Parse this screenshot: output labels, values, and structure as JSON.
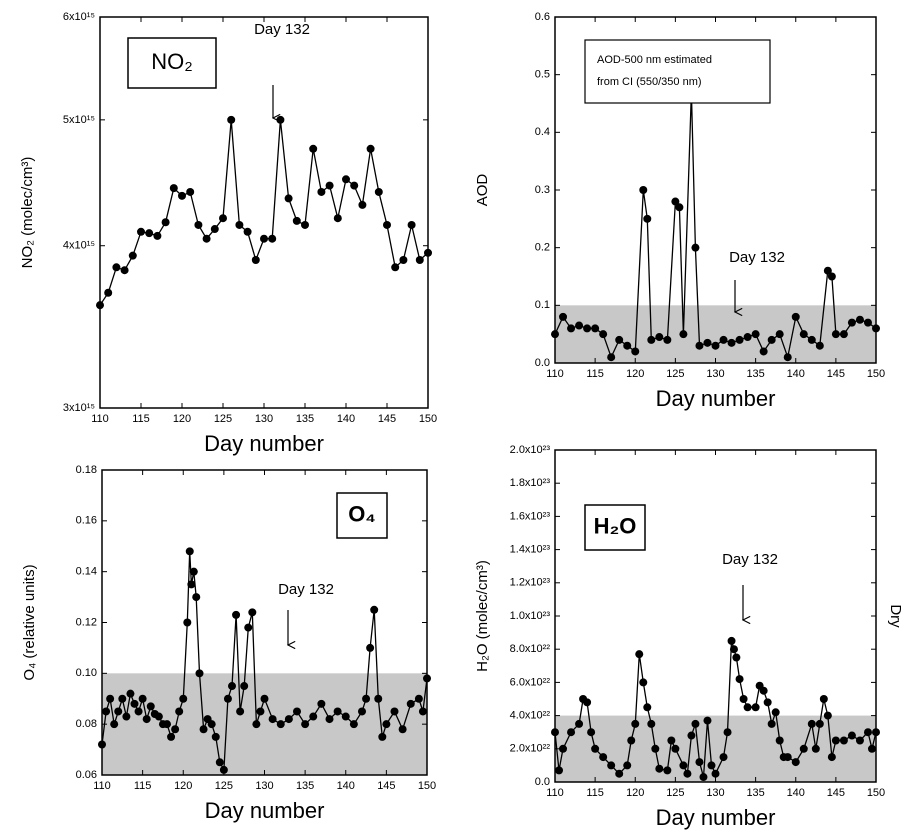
{
  "chart_data": [
    {
      "type": "line",
      "ylabel": "NO₂ (molec/cm³)",
      "xlabel": "Day number",
      "label_box": "NO₂",
      "annotation": "Day 132",
      "color": "#000000",
      "ylog": true,
      "xlim": [
        110,
        150
      ],
      "xticks": [
        110,
        115,
        120,
        125,
        130,
        135,
        140,
        145,
        150
      ],
      "ylim": [
        3000000000000000.0,
        6000000000000000.0
      ],
      "yticks": [
        {
          "value": 3000000000000000.0,
          "label": "3x10¹⁵"
        },
        {
          "value": 4000000000000000.0,
          "label": "4x10¹⁵"
        },
        {
          "value": 5000000000000000.0,
          "label": "5x10¹⁵"
        },
        {
          "value": 6000000000000000.0,
          "label": "6x10¹⁵"
        }
      ],
      "x": [
        110,
        111,
        112,
        113,
        114,
        115,
        116,
        117,
        118,
        119,
        120,
        121,
        122,
        123,
        124,
        125,
        126,
        127,
        128,
        129,
        130,
        131,
        132,
        133,
        134,
        135,
        136,
        137,
        138,
        139,
        140,
        141,
        142,
        143,
        144,
        145,
        146,
        147,
        148,
        149,
        150
      ],
      "values": [
        3600000000000000.0,
        3680000000000000.0,
        3850000000000000.0,
        3830000000000000.0,
        3930000000000000.0,
        4100000000000000.0,
        4090000000000000.0,
        4070000000000000.0,
        4170000000000000.0,
        4430000000000000.0,
        4370000000000000.0,
        4400000000000000.0,
        4150000000000000.0,
        4050000000000000.0,
        4120000000000000.0,
        4200000000000000.0,
        5000000000000000.0,
        4150000000000000.0,
        4100000000000000.0,
        3900000000000000.0,
        4050000000000000.0,
        4050000000000000.0,
        5000000000000000.0,
        4350000000000000.0,
        4180000000000000.0,
        4150000000000000.0,
        4750000000000000.0,
        4400000000000000.0,
        4450000000000000.0,
        4200000000000000.0,
        4500000000000000.0,
        4450000000000000.0,
        4300000000000000.0,
        4750000000000000.0,
        4400000000000000.0,
        4150000000000000.0,
        3850000000000000.0,
        3900000000000000.0,
        4150000000000000.0,
        3900000000000000.0,
        3950000000000000.0
      ]
    },
    {
      "type": "line",
      "ylabel": "AOD",
      "xlabel": "Day number",
      "note": [
        "AOD-500 nm estimated",
        "from CI (550/350 nm)"
      ],
      "annotation": "Day 132",
      "color": "#000000",
      "shade": [
        0,
        0.1
      ],
      "xlim": [
        110,
        150
      ],
      "xticks": [
        110,
        115,
        120,
        125,
        130,
        135,
        140,
        145,
        150
      ],
      "ylim": [
        0,
        0.6
      ],
      "yticks": [
        {
          "value": 0,
          "label": "0.0"
        },
        0.1,
        0.2,
        0.3,
        0.4,
        0.5,
        0.6
      ],
      "x": [
        110,
        111,
        112,
        113,
        114,
        115,
        116,
        117,
        118,
        119,
        120,
        121,
        121.5,
        122,
        123,
        124,
        125,
        125.5,
        126,
        127,
        127.5,
        128,
        129,
        130,
        131,
        132,
        133,
        134,
        135,
        136,
        137,
        138,
        139,
        140,
        141,
        142,
        143,
        144,
        144.5,
        145,
        146,
        147,
        148,
        149,
        150
      ],
      "values": [
        0.05,
        0.08,
        0.06,
        0.065,
        0.06,
        0.06,
        0.05,
        0.01,
        0.04,
        0.03,
        0.02,
        0.3,
        0.25,
        0.04,
        0.045,
        0.04,
        0.28,
        0.27,
        0.05,
        0.47,
        0.2,
        0.03,
        0.035,
        0.03,
        0.04,
        0.035,
        0.04,
        0.045,
        0.05,
        0.02,
        0.04,
        0.05,
        0.01,
        0.08,
        0.05,
        0.04,
        0.03,
        0.16,
        0.15,
        0.05,
        0.05,
        0.07,
        0.075,
        0.07,
        0.06
      ]
    },
    {
      "type": "line",
      "ylabel": "O₄ (relative units)",
      "xlabel": "Day number",
      "label_box": "O₄",
      "annotation": "Day 132",
      "color": "#000000",
      "shade": [
        0.06,
        0.1
      ],
      "xlim": [
        110,
        150
      ],
      "xticks": [
        110,
        115,
        120,
        125,
        130,
        135,
        140,
        145,
        150
      ],
      "ylim": [
        0.06,
        0.18
      ],
      "yticks": [
        0.06,
        0.08,
        {
          "value": 0.1,
          "label": "0.10"
        },
        0.12,
        0.14,
        0.16,
        0.18
      ],
      "x": [
        110,
        110.5,
        111,
        111.5,
        112,
        112.5,
        113,
        113.5,
        114,
        114.5,
        115,
        115.5,
        116,
        116.5,
        117,
        117.5,
        118,
        118.5,
        119,
        119.5,
        120,
        120.5,
        120.8,
        121,
        121.3,
        121.6,
        122,
        122.5,
        123,
        123.5,
        124,
        124.5,
        125,
        125.5,
        126,
        126.5,
        127,
        127.5,
        128,
        128.5,
        129,
        129.5,
        130,
        131,
        132,
        133,
        134,
        135,
        136,
        137,
        138,
        139,
        140,
        141,
        142,
        142.5,
        143,
        143.5,
        144,
        144.5,
        145,
        146,
        147,
        148,
        149,
        149.5,
        150
      ],
      "values": [
        0.072,
        0.085,
        0.09,
        0.08,
        0.085,
        0.09,
        0.083,
        0.092,
        0.088,
        0.085,
        0.09,
        0.082,
        0.087,
        0.084,
        0.083,
        0.08,
        0.08,
        0.075,
        0.078,
        0.085,
        0.09,
        0.12,
        0.148,
        0.135,
        0.14,
        0.13,
        0.1,
        0.078,
        0.082,
        0.08,
        0.075,
        0.065,
        0.062,
        0.09,
        0.095,
        0.123,
        0.085,
        0.095,
        0.118,
        0.124,
        0.08,
        0.085,
        0.09,
        0.082,
        0.08,
        0.082,
        0.085,
        0.08,
        0.083,
        0.088,
        0.082,
        0.085,
        0.083,
        0.08,
        0.085,
        0.09,
        0.11,
        0.125,
        0.09,
        0.075,
        0.08,
        0.085,
        0.078,
        0.088,
        0.09,
        0.085,
        0.098
      ]
    },
    {
      "type": "line",
      "ylabel": "H₂O (molec/cm³)",
      "xlabel": "Day number",
      "label_box": "H₂O",
      "annotation": "Day 132",
      "side_label": "Dry",
      "color": "#000000",
      "shade": [
        0,
        4e+22
      ],
      "xlim": [
        110,
        150
      ],
      "xticks": [
        110,
        115,
        120,
        125,
        130,
        135,
        140,
        145,
        150
      ],
      "ylim": [
        0,
        2e+23
      ],
      "yticks": [
        {
          "value": 0,
          "label": "0.0"
        },
        {
          "value": 2e+22,
          "label": "2.0x10²²"
        },
        {
          "value": 4e+22,
          "label": "4.0x10²²"
        },
        {
          "value": 6e+22,
          "label": "6.0x10²²"
        },
        {
          "value": 8e+22,
          "label": "8.0x10²²"
        },
        {
          "value": 1e+23,
          "label": "1.0x10²³"
        },
        {
          "value": 1.2e+23,
          "label": "1.2x10²³"
        },
        {
          "value": 1.4e+23,
          "label": "1.4x10²³"
        },
        {
          "value": 1.6e+23,
          "label": "1.6x10²³"
        },
        {
          "value": 1.8e+23,
          "label": "1.8x10²³"
        },
        {
          "value": 2e+23,
          "label": "2.0x10²³"
        }
      ],
      "x": [
        110,
        110.5,
        111,
        112,
        113,
        113.5,
        114,
        114.5,
        115,
        116,
        117,
        118,
        119,
        119.5,
        120,
        120.5,
        121,
        121.5,
        122,
        122.5,
        123,
        124,
        124.5,
        125,
        126,
        126.5,
        127,
        127.5,
        128,
        128.5,
        129,
        129.5,
        130,
        131,
        131.5,
        132,
        132.3,
        132.6,
        133,
        133.5,
        134,
        135,
        135.5,
        136,
        136.5,
        137,
        137.5,
        138,
        138.5,
        139,
        140,
        141,
        142,
        142.5,
        143,
        143.5,
        144,
        144.5,
        145,
        146,
        147,
        148,
        149,
        149.5,
        150
      ],
      "values": [
        3e+22,
        7e+21,
        2e+22,
        3e+22,
        3.5e+22,
        5e+22,
        4.8e+22,
        3e+22,
        2e+22,
        1.5e+22,
        1e+22,
        5e+21,
        1e+22,
        2.5e+22,
        3.5e+22,
        7.7e+22,
        6e+22,
        4.5e+22,
        3.5e+22,
        2e+22,
        8e+21,
        7e+21,
        2.5e+22,
        2e+22,
        1e+22,
        5e+21,
        2.8e+22,
        3.5e+22,
        1.2e+22,
        3e+21,
        3.7e+22,
        1e+22,
        5e+21,
        1.5e+22,
        3e+22,
        8.5e+22,
        8e+22,
        7.5e+22,
        6.2e+22,
        5e+22,
        4.5e+22,
        4.5e+22,
        5.8e+22,
        5.5e+22,
        4.8e+22,
        3.5e+22,
        4.2e+22,
        2.5e+22,
        1.5e+22,
        1.5e+22,
        1.2e+22,
        2e+22,
        3.5e+22,
        2e+22,
        3.5e+22,
        5e+22,
        4e+22,
        1.5e+22,
        2.5e+22,
        2.5e+22,
        2.8e+22,
        2.5e+22,
        3e+22,
        2e+22,
        3e+22
      ]
    }
  ]
}
